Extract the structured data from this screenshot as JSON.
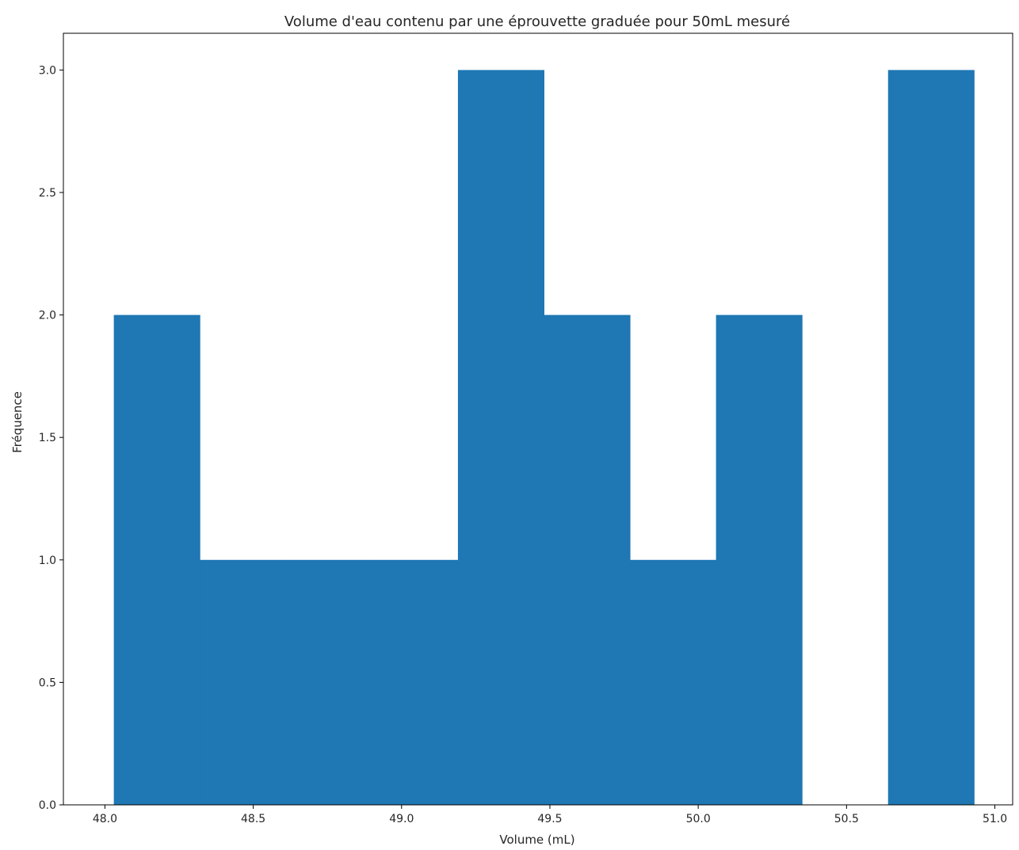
{
  "chart_data": {
    "type": "bar",
    "title": "Volume d'eau contenu par une éprouvette graduée pour 50mL mesuré",
    "xlabel": "Volume (mL)",
    "ylabel": "Fréquence",
    "xlim": [
      47.86,
      51.06
    ],
    "ylim": [
      0,
      3.15
    ],
    "x_ticks": [
      48.0,
      48.5,
      49.0,
      49.5,
      50.0,
      50.5,
      51.0
    ],
    "x_tick_labels": [
      "48.0",
      "48.5",
      "49.0",
      "49.5",
      "50.0",
      "50.5",
      "51.0"
    ],
    "y_ticks": [
      0,
      0.5,
      1.0,
      1.5,
      2.0,
      2.5,
      3.0
    ],
    "y_tick_labels": [
      "0.0",
      "0.5",
      "1.0",
      "1.5",
      "2.0",
      "2.5",
      "3.0"
    ],
    "bin_edges": [
      48.03,
      48.32,
      48.61,
      48.9,
      49.19,
      49.48,
      49.77,
      50.06,
      50.35,
      50.64,
      50.93
    ],
    "values": [
      2,
      1,
      1,
      1,
      3,
      2,
      1,
      2,
      0,
      3
    ],
    "bar_color": "#1f77b4",
    "grid": false,
    "legend": false
  }
}
